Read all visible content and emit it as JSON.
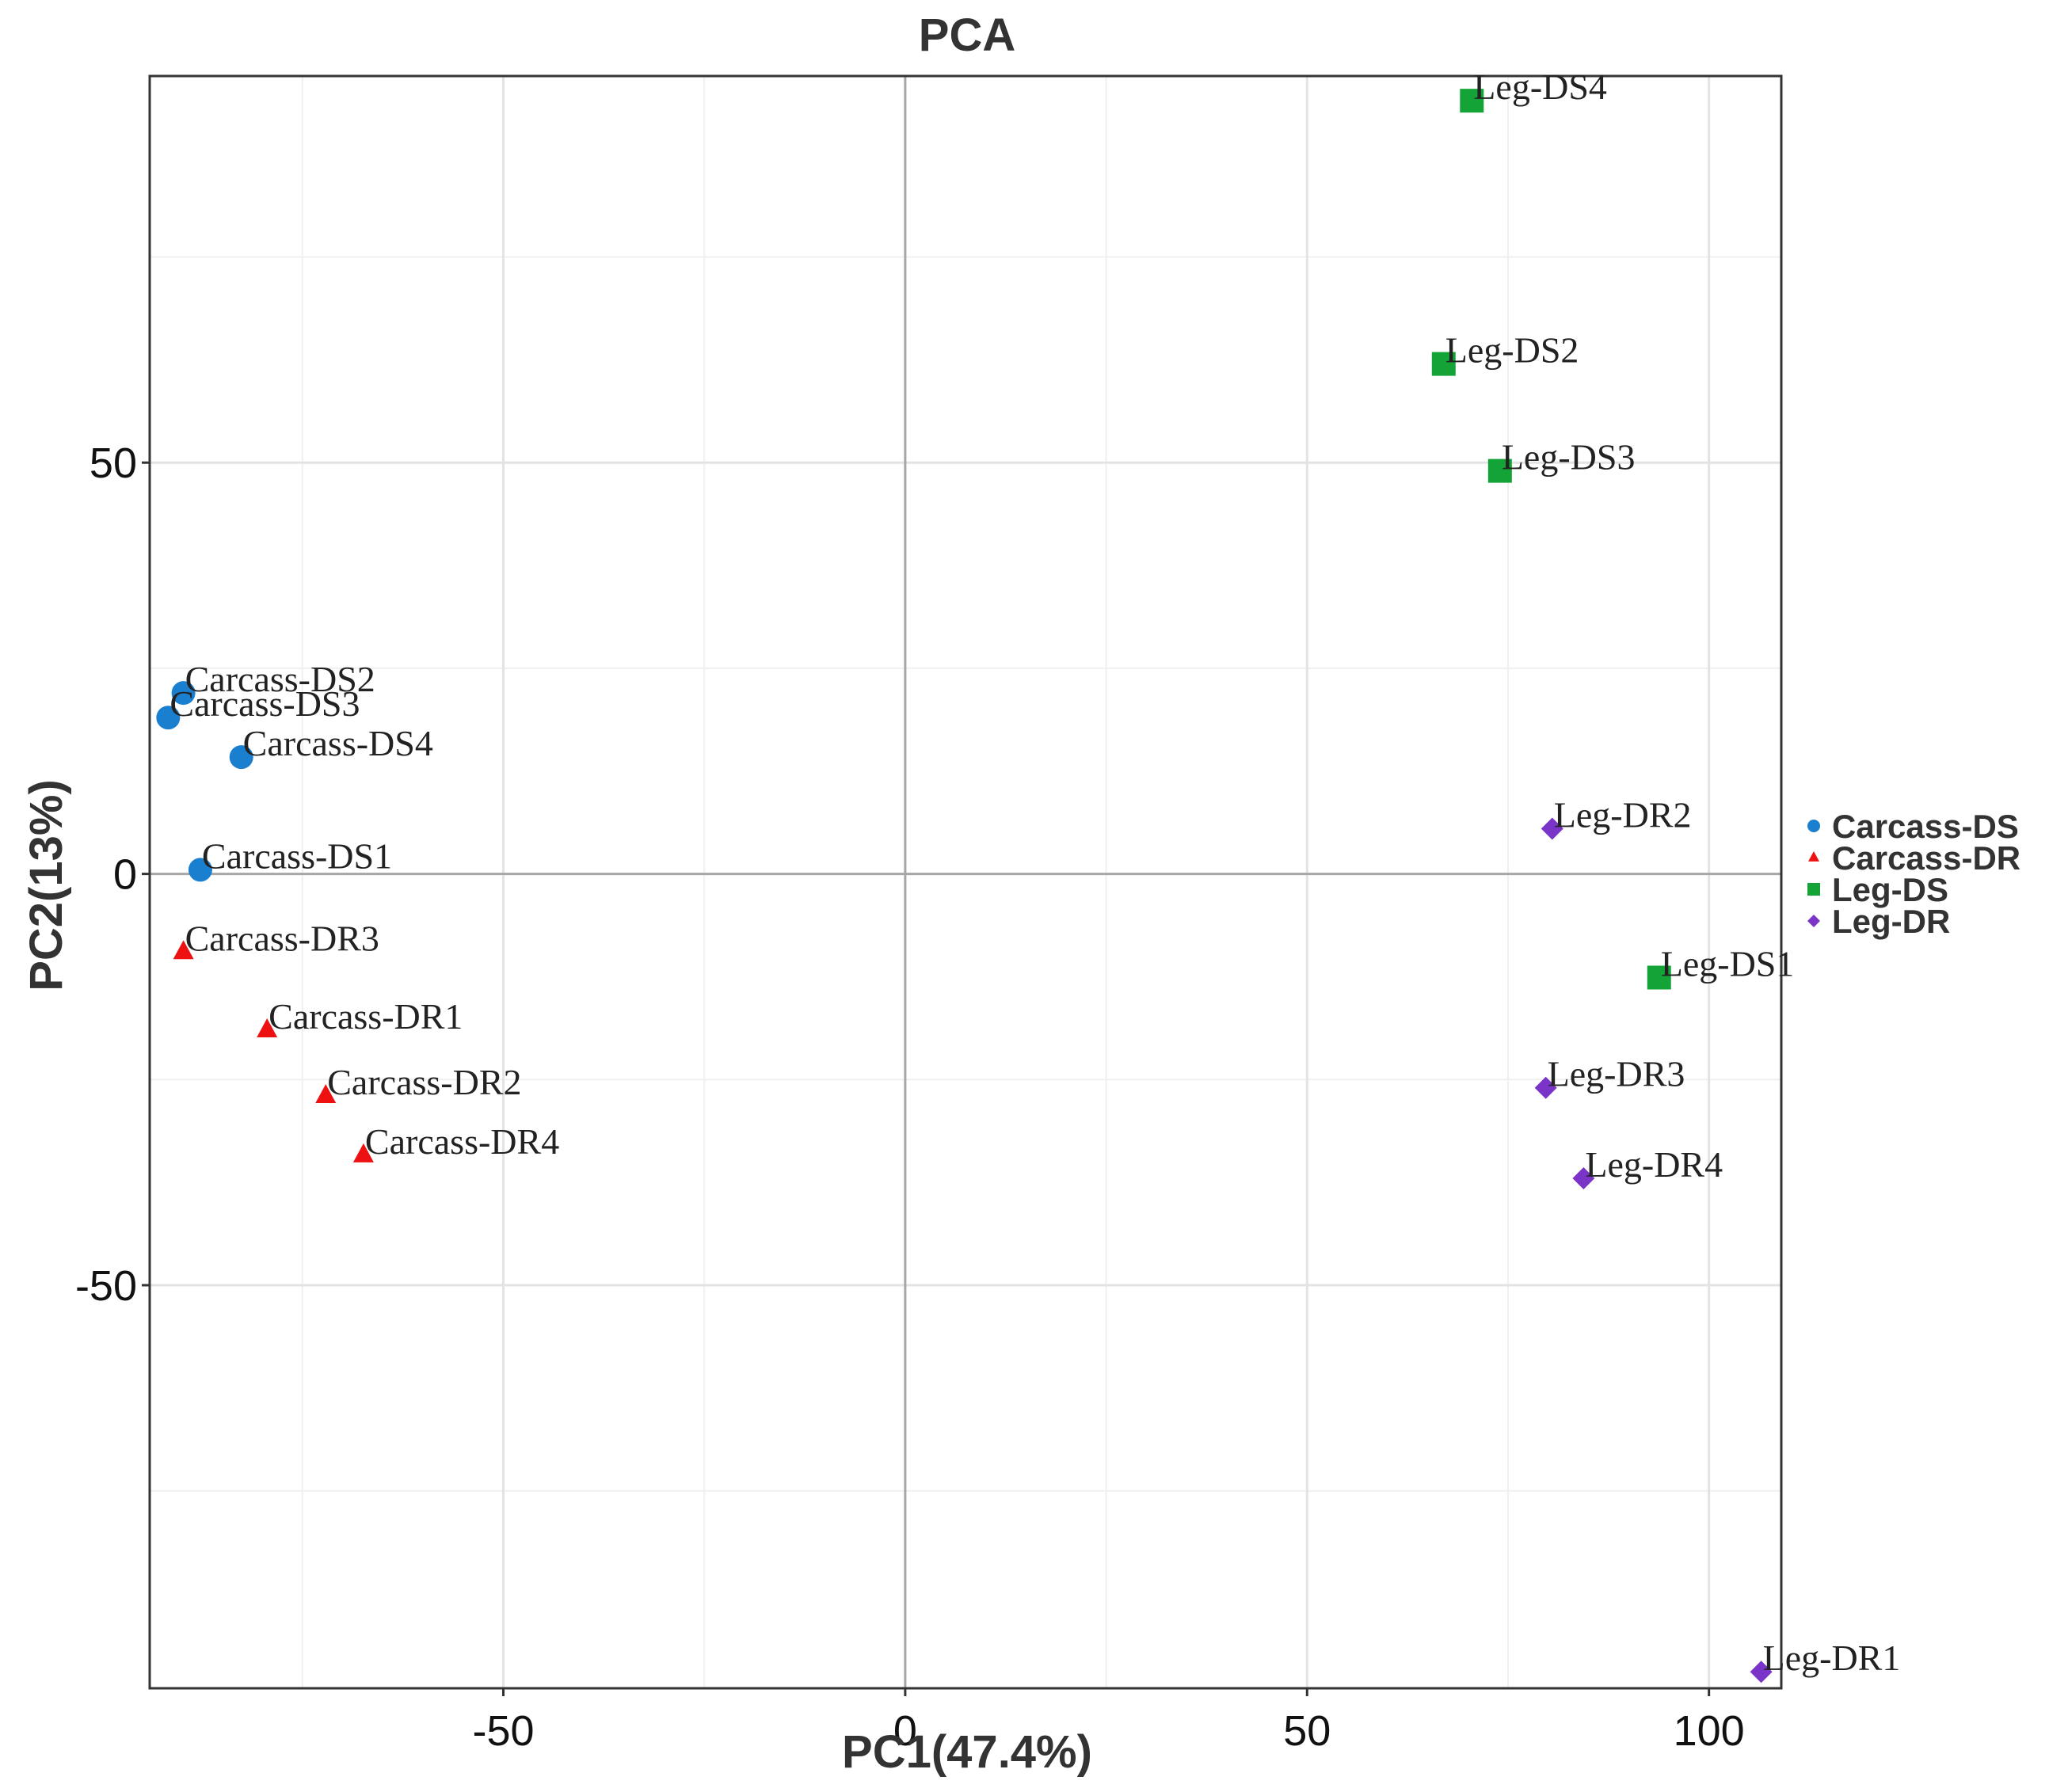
{
  "chart_data": {
    "type": "scatter",
    "title": "PCA",
    "xlabel": "PC1(47.4%)",
    "ylabel": "PC2(13%)",
    "xlim": [
      -94,
      109
    ],
    "ylim": [
      -99,
      97
    ],
    "x_ticks": [
      -50,
      0,
      50,
      100
    ],
    "x_tick_labels": [
      "-50",
      "0",
      "50",
      "100"
    ],
    "y_ticks": [
      -50,
      0,
      50
    ],
    "y_tick_labels": [
      "-50",
      "0",
      "50"
    ],
    "grid": true,
    "zero_lines": true,
    "legend_position": "right",
    "series": [
      {
        "name": "Carcass-DS",
        "marker": "circle",
        "color": "#1b7fcf",
        "points": [
          {
            "label": "Carcass-DS2",
            "x": -89.8,
            "y": 22.0
          },
          {
            "label": "Carcass-DS3",
            "x": -91.7,
            "y": 19.0
          },
          {
            "label": "Carcass-DS4",
            "x": -82.6,
            "y": 14.2
          },
          {
            "label": "Carcass-DS1",
            "x": -87.7,
            "y": 0.5
          }
        ]
      },
      {
        "name": "Carcass-DR",
        "marker": "triangle",
        "color": "#ee1111",
        "points": [
          {
            "label": "Carcass-DR3",
            "x": -89.8,
            "y": -9.5
          },
          {
            "label": "Carcass-DR1",
            "x": -79.4,
            "y": -19.0
          },
          {
            "label": "Carcass-DR2",
            "x": -72.1,
            "y": -27.0
          },
          {
            "label": "Carcass-DR4",
            "x": -67.4,
            "y": -34.2
          }
        ]
      },
      {
        "name": "Leg-DS",
        "marker": "square",
        "color": "#13a336",
        "points": [
          {
            "label": "Leg-DS4",
            "x": 70.5,
            "y": 94.0
          },
          {
            "label": "Leg-DS2",
            "x": 67.0,
            "y": 62.0
          },
          {
            "label": "Leg-DS3",
            "x": 74.0,
            "y": 49.0
          },
          {
            "label": "Leg-DS1",
            "x": 93.8,
            "y": -12.6
          }
        ]
      },
      {
        "name": "Leg-DR",
        "marker": "diamond",
        "color": "#7a35c8",
        "points": [
          {
            "label": "Leg-DR2",
            "x": 80.5,
            "y": 5.5
          },
          {
            "label": "Leg-DR3",
            "x": 79.7,
            "y": -26.0
          },
          {
            "label": "Leg-DR4",
            "x": 84.4,
            "y": -37.0
          },
          {
            "label": "Leg-DR1",
            "x": 106.5,
            "y": -97.0
          }
        ]
      }
    ]
  }
}
